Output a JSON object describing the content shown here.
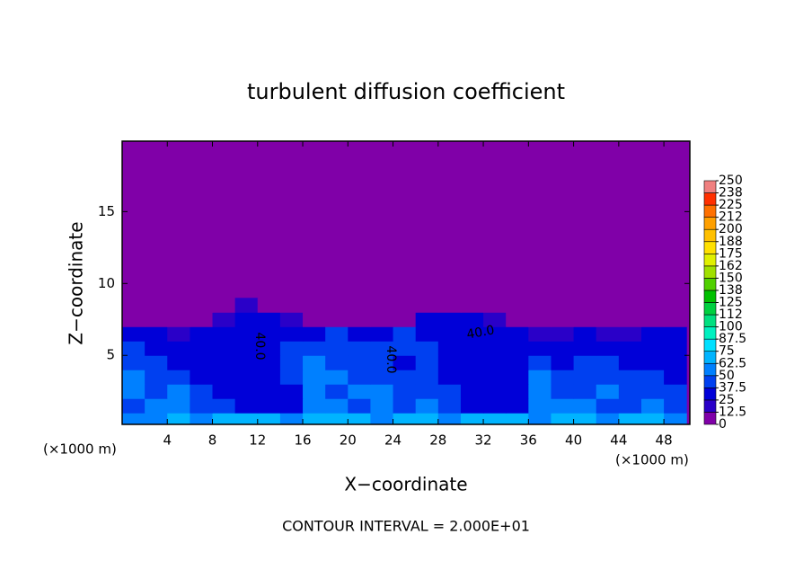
{
  "chart_data": {
    "type": "heatmap",
    "title": "turbulent diffusion coefficient",
    "xlabel": "X−coordinate",
    "ylabel": "Z−coordinate",
    "xunit_left": "(×1000 m)",
    "xunit_right": "(×1000 m)",
    "footer": "CONTOUR INTERVAL = 2.000E+01",
    "annotations": [
      "40.0",
      "40.0",
      "40.0"
    ],
    "xlim": [
      0,
      50.3
    ],
    "ylim": [
      0.2,
      19.9
    ],
    "xticks": [
      4,
      8,
      12,
      16,
      20,
      24,
      28,
      32,
      36,
      40,
      44,
      48
    ],
    "yticks": [
      5,
      10,
      15
    ],
    "x": [
      1,
      3,
      5,
      7,
      9,
      11,
      13,
      15,
      17,
      19,
      21,
      23,
      25,
      27,
      29,
      31,
      33,
      35,
      37,
      39,
      41,
      43,
      45,
      47,
      49
    ],
    "y": [
      0.5,
      1.5,
      2.5,
      3.5,
      4.5,
      5.5,
      6.5,
      7.5,
      8.5
    ],
    "z": [
      [
        60,
        55,
        65,
        60,
        70,
        70,
        65,
        60,
        70,
        65,
        70,
        60,
        65,
        70,
        60,
        70,
        65,
        70,
        60,
        65,
        70,
        60,
        65,
        70,
        60
      ],
      [
        45,
        60,
        55,
        40,
        38,
        35,
        35,
        35,
        50,
        55,
        45,
        50,
        40,
        55,
        38,
        35,
        35,
        35,
        55,
        50,
        50,
        45,
        40,
        50,
        45
      ],
      [
        50,
        40,
        60,
        38,
        35,
        35,
        35,
        35,
        55,
        45,
        50,
        55,
        45,
        40,
        38,
        35,
        35,
        35,
        60,
        45,
        40,
        50,
        45,
        45,
        40
      ],
      [
        55,
        45,
        38,
        35,
        33,
        33,
        33,
        40,
        55,
        50,
        45,
        45,
        40,
        38,
        35,
        33,
        33,
        35,
        55,
        40,
        38,
        45,
        38,
        40,
        35
      ],
      [
        45,
        40,
        35,
        30,
        33,
        33,
        35,
        45,
        50,
        45,
        45,
        40,
        35,
        45,
        35,
        33,
        33,
        35,
        40,
        35,
        38,
        40,
        35,
        35,
        30
      ],
      [
        40,
        35,
        30,
        35,
        33,
        35,
        35,
        40,
        45,
        40,
        45,
        40,
        40,
        40,
        35,
        33,
        35,
        35,
        30,
        30,
        35,
        35,
        30,
        30,
        30
      ],
      [
        35,
        30,
        20,
        25,
        35,
        35,
        35,
        30,
        35,
        40,
        35,
        35,
        40,
        35,
        35,
        35,
        35,
        30,
        15,
        15,
        25,
        20,
        20,
        30,
        35
      ],
      [
        10,
        5,
        0,
        0,
        15,
        30,
        30,
        15,
        0,
        5,
        5,
        0,
        0,
        25,
        30,
        25,
        20,
        5,
        0,
        0,
        0,
        0,
        0,
        10,
        10
      ],
      [
        0,
        0,
        0,
        0,
        0,
        15,
        5,
        0,
        0,
        0,
        0,
        0,
        0,
        0,
        10,
        5,
        0,
        0,
        0,
        0,
        0,
        0,
        0,
        0,
        0
      ]
    ],
    "colorbar": {
      "ticks": [
        0,
        12.5,
        25,
        37.5,
        50,
        62.5,
        75,
        87.5,
        100,
        112,
        125,
        138,
        150,
        162,
        175,
        188,
        200,
        212,
        225,
        238,
        250
      ],
      "colors": [
        "#8000a8",
        "#2a00c8",
        "#0000d8",
        "#0040f0",
        "#0080ff",
        "#00b4ff",
        "#00e0ff",
        "#00f0c0",
        "#00e080",
        "#00d040",
        "#00c000",
        "#50d000",
        "#a0e000",
        "#e0f000",
        "#ffe000",
        "#ffc000",
        "#ffa000",
        "#ff7000",
        "#ff3000",
        "#f08080"
      ]
    }
  }
}
